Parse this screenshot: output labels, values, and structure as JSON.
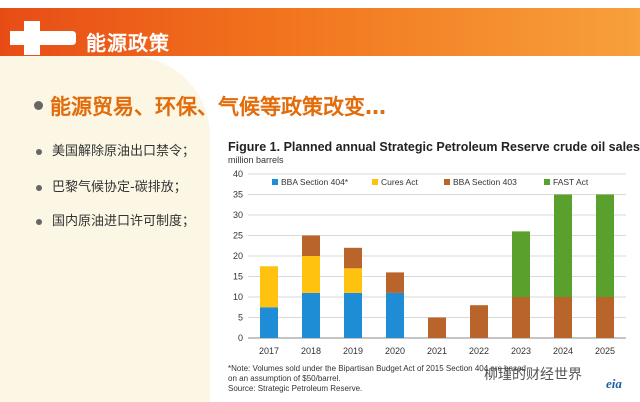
{
  "header": {
    "title": "能源政策"
  },
  "headline": "能源贸易、环保、气候等政策改变…",
  "bullets": [
    {
      "text": "美国解除原油出口禁令；"
    },
    {
      "text": "巴黎气候协定-碳排放；"
    },
    {
      "text": "国内原油进口许可制度；"
    }
  ],
  "chart_data": {
    "type": "bar",
    "stacked": true,
    "title": "Figure 1. Planned annual Strategic Petroleum Reserve crude oil sales",
    "ylabel": "million barrels",
    "ylim": [
      0,
      40
    ],
    "yticks": [
      0,
      5,
      10,
      15,
      20,
      25,
      30,
      35,
      40
    ],
    "categories": [
      "2017",
      "2018",
      "2019",
      "2020",
      "2021",
      "2022",
      "2023",
      "2024",
      "2025"
    ],
    "series": [
      {
        "name": "BBA Section 404*",
        "color": "#1f8dd6",
        "values": [
          7.5,
          11,
          11,
          11,
          0,
          0,
          0,
          0,
          0
        ]
      },
      {
        "name": "Cures Act",
        "color": "#ffc20e",
        "values": [
          10,
          9,
          6,
          0,
          0,
          0,
          0,
          0,
          0
        ]
      },
      {
        "name": "BBA Section 403",
        "color": "#b8642a",
        "values": [
          0,
          5,
          5,
          5,
          5,
          8,
          10,
          10,
          10
        ]
      },
      {
        "name": "FAST Act",
        "color": "#5aa02c",
        "values": [
          0,
          0,
          0,
          0,
          0,
          0,
          16,
          25,
          25
        ]
      }
    ],
    "notes": [
      "*Note: Volumes sold under the Bipartisan Budget Act of 2015 Section 404 are based",
      "on an assumption of $50/barrel.",
      "Source: Strategic Petroleum Reserve."
    ],
    "legend_position": "top"
  },
  "watermark": "柳瑾的财经世界",
  "source_logo": "eia"
}
